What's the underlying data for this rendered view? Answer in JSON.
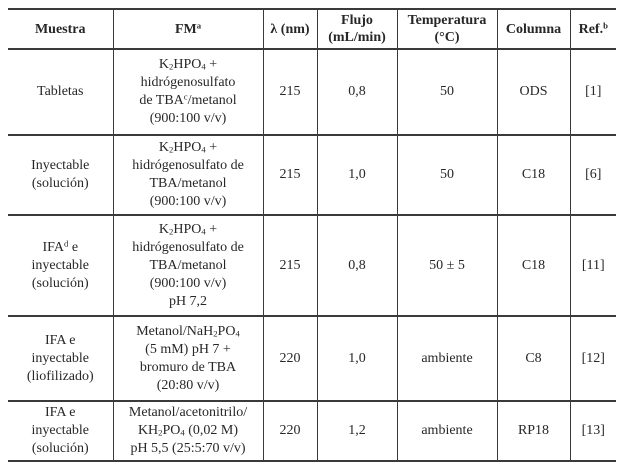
{
  "page": {
    "background_color": "#ffffff",
    "text_color": "#272727",
    "rule_color": "#3a3a3a"
  },
  "table": {
    "headers": [
      "Muestra",
      "FM^a^",
      "λ (nm)",
      "Flujo\n(mL/min)",
      "Temperatura\n(°C)",
      "Columna",
      "Ref.^b^"
    ],
    "rows": [
      [
        "Tabletas",
        "K~2~HPO~4~ +\nhidrógenosulfato\nde TBA^c^/metanol\n(900:100 v/v)",
        "215",
        "0,8",
        "50",
        "ODS",
        "[1]"
      ],
      [
        "Inyectable\n(solución)",
        "K~2~HPO~4~ +\nhidrógenosulfato de\nTBA/metanol\n(900:100 v/v)",
        "215",
        "1,0",
        "50",
        "C18",
        "[6]"
      ],
      [
        "IFA^d^ e\ninyectable\n(solución)",
        "K~2~HPO~4~ +\nhidrógenosulfato de\nTBA/metanol\n(900:100 v/v)\npH 7,2",
        "215",
        "0,8",
        "50 ± 5",
        "C18",
        "[11]"
      ],
      [
        "IFA e\ninyectable\n(liofilizado)",
        "Metanol/NaH~2~PO~4~\n(5 mM) pH 7 +\nbromuro de TBA\n(20:80 v/v)",
        "220",
        "1,0",
        "ambiente",
        "C8",
        "[12]"
      ],
      [
        "IFA e\ninyectable\n(solución)",
        "Metanol/acetonitrilo/\nKH~2~PO~4~ (0,02 M)\npH 5,5 (25:5:70 v/v)",
        "220",
        "1,2",
        "ambiente",
        "RP18",
        "[13]"
      ]
    ]
  }
}
